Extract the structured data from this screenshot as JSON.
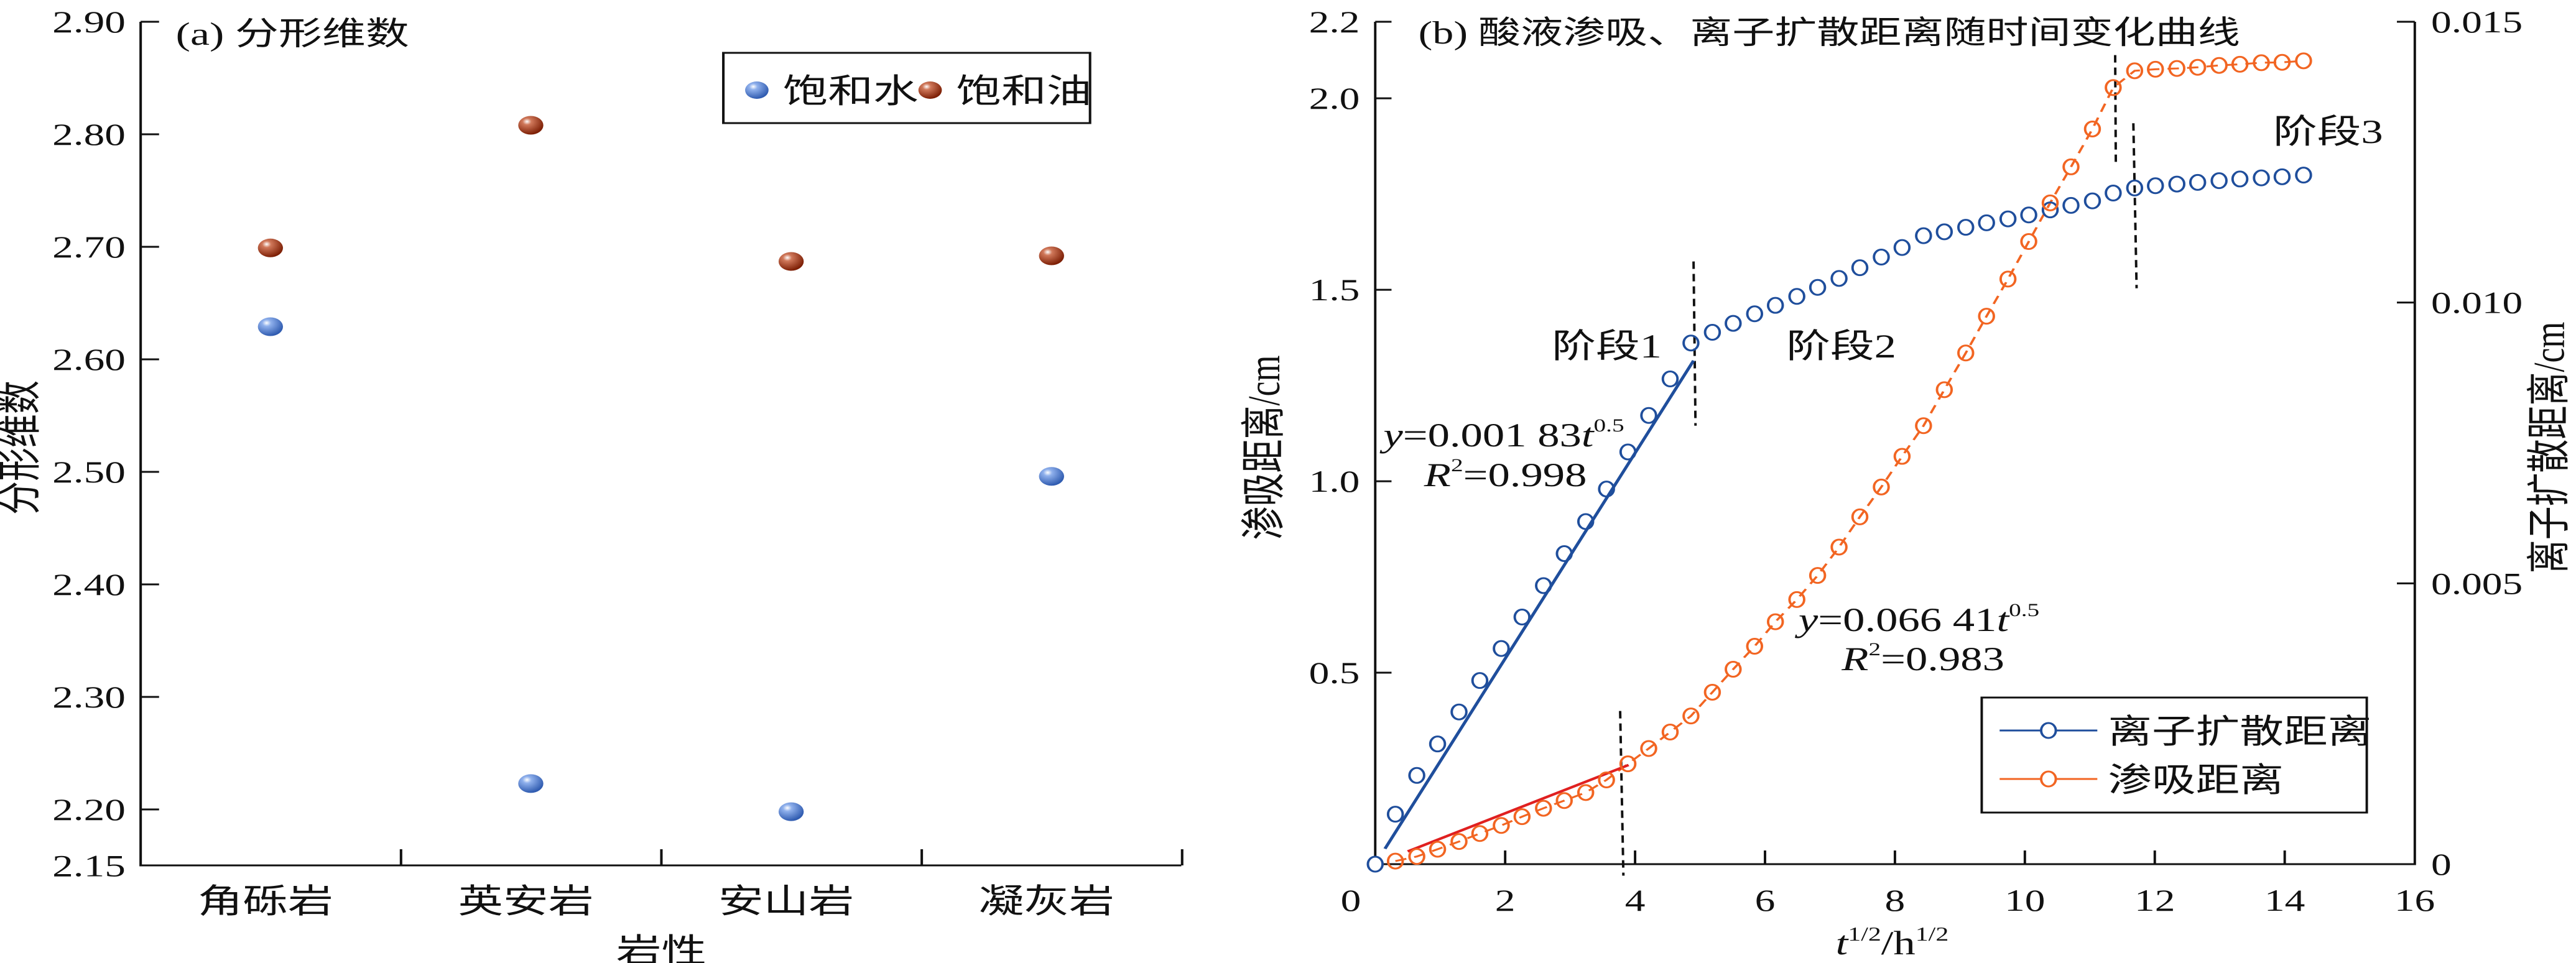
{
  "chart_data": [
    {
      "type": "scatter",
      "title": "(a) 分形维数",
      "xlabel": "岩性",
      "ylabel": "分形维数",
      "categories": [
        "角砾岩",
        "英安岩",
        "安山岩",
        "凝灰岩"
      ],
      "ylim": [
        2.15,
        2.9
      ],
      "yticks": [
        "2.90",
        "2.80",
        "2.70",
        "2.60",
        "2.50",
        "2.40",
        "2.30",
        "2.20",
        "2.15"
      ],
      "legend_position": "top-right",
      "series": [
        {
          "name": "饱和水",
          "color": "#4a78c8",
          "values": [
            2.629,
            2.223,
            2.198,
            2.496
          ]
        },
        {
          "name": "饱和油",
          "color": "#9b2d10",
          "values": [
            2.699,
            2.808,
            2.687,
            2.692
          ]
        }
      ]
    },
    {
      "type": "line",
      "title": "(b) 酸液渗吸、离子扩散距离随时间变化曲线",
      "xlabel": {
        "base": "t",
        "sup1": "1/2",
        "mid": "/h",
        "sup2": "1/2"
      },
      "ylabel_left": "渗吸距离/cm",
      "ylabel_right": "离子扩散距离/cm",
      "xlim": [
        0,
        16
      ],
      "xticks": [
        "0",
        "2",
        "4",
        "6",
        "8",
        "10",
        "12",
        "14",
        "16"
      ],
      "ylim_left": [
        0,
        2.2
      ],
      "yticks_left": [
        "2.2",
        "2.0",
        "1.5",
        "1.0",
        "0.5"
      ],
      "ylim_right": [
        0,
        0.015
      ],
      "yticks_right": [
        "0.015",
        "0.010",
        "0.005",
        "0"
      ],
      "legend_position": "bottom-right",
      "x": [
        0.31,
        0.64,
        0.96,
        1.29,
        1.61,
        1.94,
        2.26,
        2.59,
        2.91,
        3.24,
        3.56,
        3.89,
        4.21,
        4.54,
        4.86,
        5.19,
        5.51,
        5.84,
        6.16,
        6.49,
        6.81,
        7.14,
        7.46,
        7.79,
        8.11,
        8.44,
        8.76,
        9.09,
        9.41,
        9.74,
        10.06,
        10.39,
        10.71,
        11.04,
        11.36,
        11.69,
        12.01,
        12.34,
        12.66,
        12.99,
        13.31,
        13.64,
        13.96,
        14.29
      ],
      "series": [
        {
          "name": "离子扩散距离",
          "axis": "right",
          "color": "#1f4e9c",
          "values": [
            0.00089,
            0.00158,
            0.00214,
            0.00271,
            0.00327,
            0.00384,
            0.0044,
            0.00496,
            0.00553,
            0.0061,
            0.00668,
            0.00734,
            0.00799,
            0.00864,
            0.00928,
            0.00947,
            0.00963,
            0.0098,
            0.00995,
            0.01011,
            0.01027,
            0.01043,
            0.01062,
            0.01081,
            0.01098,
            0.01119,
            0.01126,
            0.01134,
            0.01142,
            0.01149,
            0.01156,
            0.01165,
            0.01173,
            0.01181,
            0.01195,
            0.01204,
            0.01208,
            0.01211,
            0.01214,
            0.01217,
            0.0122,
            0.01222,
            0.01224,
            0.01227
          ]
        },
        {
          "name": "渗吸距离",
          "axis": "left",
          "color": "#f26522",
          "values": [
            0.008,
            0.02,
            0.039,
            0.059,
            0.08,
            0.101,
            0.124,
            0.146,
            0.166,
            0.187,
            0.22,
            0.262,
            0.302,
            0.345,
            0.387,
            0.449,
            0.509,
            0.569,
            0.633,
            0.691,
            0.754,
            0.828,
            0.907,
            0.985,
            1.065,
            1.145,
            1.239,
            1.335,
            1.431,
            1.528,
            1.626,
            1.727,
            1.821,
            1.92,
            2.028,
            2.072,
            2.076,
            2.078,
            2.081,
            2.086,
            2.089,
            2.093,
            2.094,
            2.098
          ]
        }
      ],
      "fits": [
        {
          "series": "离子扩散距离",
          "coef": 0.00183,
          "x_range": [
            0.15,
            4.9
          ],
          "color": "#1f4e9c",
          "equation": {
            "y": "y",
            "eq": "=0.001 83",
            "t": "t",
            "exp": "0.5"
          },
          "r2": {
            "r": "R",
            "sup": "2",
            "val": "=0.998"
          }
        },
        {
          "series": "渗吸距离",
          "coef": 0.06641,
          "x_range": [
            0.5,
            3.9
          ],
          "color": "#e02020",
          "equation": {
            "y": "y",
            "eq": "=0.066 41",
            "t": "t",
            "exp": "0.5"
          },
          "r2": {
            "r": "R",
            "sup": "2",
            "val": "=0.983"
          }
        }
      ],
      "stage_dividers": [
        {
          "x": [
            4.9,
            4.93
          ],
          "y": [
            1.574,
            1.145
          ]
        },
        {
          "x": [
            3.77,
            3.82
          ],
          "y": [
            0.4,
            -0.03
          ]
        },
        {
          "x": [
            11.39,
            11.4
          ],
          "y": [
            2.113,
            1.834
          ]
        },
        {
          "x": [
            11.67,
            11.72
          ],
          "y": [
            1.935,
            1.504
          ]
        }
      ],
      "annotations": [
        "阶段1",
        "阶段2",
        "阶段3"
      ]
    }
  ]
}
